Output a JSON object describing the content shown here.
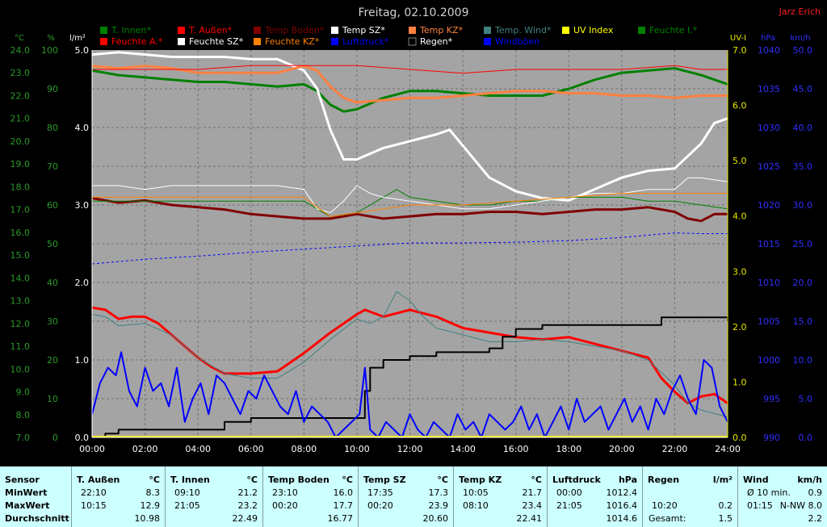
{
  "title": "Freitag, 02.10.2009",
  "author": "Jarz Erich",
  "colors": {
    "bg": "#000000",
    "plot": "#a4a4a4",
    "grid": "#707070",
    "temp_axis": "#2a9a2a",
    "hum_axis": "#2a9a2a",
    "rain_axis": "#ffffff",
    "uv_axis": "#e6e600",
    "press_axis": "#3030ff",
    "wind_axis": "#3030ff"
  },
  "legend": [
    {
      "label": "T. Innen*",
      "color": "#008000"
    },
    {
      "label": "T. Außen*",
      "color": "#ff0000"
    },
    {
      "label": "Temp Boden*",
      "color": "#800000"
    },
    {
      "label": "Temp SZ*",
      "color": "#ffffff"
    },
    {
      "label": "Temp KZ*",
      "color": "#ff8040"
    },
    {
      "label": "Temp. Wind*",
      "color": "#408080"
    },
    {
      "label": "UV Index",
      "color": "#ffff00"
    },
    {
      "label": "Feuchte I.*",
      "color": "#008000"
    },
    {
      "label": "Feuchte A.*",
      "color": "#ff0000"
    },
    {
      "label": "Feuchte SZ*",
      "color": "#ffffff"
    },
    {
      "label": "Feuchte KZ*",
      "color": "#ff8000"
    },
    {
      "label": "Luftdruck*",
      "color": "#0000ff"
    },
    {
      "label": "Regen*",
      "color": "#000000"
    },
    {
      "label": "Windböen",
      "color": "#0000ff"
    }
  ],
  "chart_data": {
    "type": "line",
    "xlabel": "",
    "x_ticks": [
      "00:00",
      "02:00",
      "04:00",
      "06:00",
      "08:00",
      "10:00",
      "12:00",
      "14:00",
      "16:00",
      "18:00",
      "20:00",
      "22:00",
      "24:00"
    ],
    "xlim": [
      0,
      24
    ],
    "grid": true,
    "legend_position": "top",
    "axes": {
      "temp": {
        "unit": "°C",
        "range": [
          7.0,
          24.0
        ],
        "ticks": [
          "7.0",
          "8.0",
          "9.0",
          "10.0",
          "11.0",
          "12.0",
          "13.0",
          "14.0",
          "15.0",
          "16.0",
          "17.0",
          "18.0",
          "19.0",
          "20.0",
          "21.0",
          "22.0",
          "23.0",
          "24.0"
        ]
      },
      "hum": {
        "unit": "%",
        "range": [
          0,
          100
        ],
        "ticks": [
          "0",
          "10",
          "20",
          "30",
          "40",
          "50",
          "60",
          "70",
          "80",
          "90",
          "100"
        ]
      },
      "rain": {
        "unit": "l/m²",
        "range": [
          0.0,
          5.0
        ],
        "ticks": [
          "0.0",
          "1.0",
          "2.0",
          "3.0",
          "4.0",
          "5.0"
        ]
      },
      "uv": {
        "unit": "UV-I",
        "range": [
          0.0,
          7.0
        ],
        "ticks": [
          "0.0",
          "1.0",
          "2.0",
          "3.0",
          "4.0",
          "5.0",
          "6.0",
          "7.0"
        ]
      },
      "press": {
        "unit": "hPa",
        "range": [
          990,
          1040
        ],
        "ticks": [
          "990",
          "995",
          "1000",
          "1005",
          "1010",
          "1015",
          "1020",
          "1025",
          "1030",
          "1035",
          "1040"
        ]
      },
      "wind": {
        "unit": "km/h",
        "range": [
          0.0,
          50.0
        ],
        "ticks": [
          "0.0",
          "5.0",
          "10.0",
          "15.0",
          "20.0",
          "25.0",
          "30.0",
          "35.0",
          "40.0",
          "45.0",
          "50.0"
        ]
      }
    },
    "series": [
      {
        "name": "T. Innen*",
        "axis": "temp",
        "color": "#008000",
        "width": 3,
        "x": [
          0,
          1,
          2,
          3,
          4,
          5,
          6,
          7,
          8,
          8.5,
          9,
          9.5,
          10,
          11,
          12,
          13,
          14,
          15,
          16,
          17,
          18,
          19,
          20,
          21,
          22,
          23,
          24
        ],
        "y": [
          23.1,
          22.9,
          22.8,
          22.7,
          22.6,
          22.6,
          22.5,
          22.4,
          22.5,
          22.2,
          21.6,
          21.3,
          21.4,
          21.9,
          22.2,
          22.2,
          22.1,
          22.0,
          22.0,
          22.0,
          22.3,
          22.7,
          23.0,
          23.1,
          23.2,
          22.9,
          22.5
        ]
      },
      {
        "name": "T. Außen*",
        "axis": "temp",
        "color": "#ff0000",
        "width": 3,
        "x": [
          0,
          0.5,
          1,
          1.5,
          2,
          2.5,
          3,
          3.5,
          4,
          4.5,
          5,
          6,
          7,
          8,
          9,
          10,
          10.3,
          11,
          12,
          13,
          14,
          15,
          16,
          17,
          18,
          19,
          20,
          21,
          21.5,
          22,
          22.5,
          23,
          23.5,
          24
        ],
        "y": [
          12.7,
          12.6,
          12.2,
          12.3,
          12.3,
          12.0,
          11.5,
          11.0,
          10.5,
          10.1,
          9.8,
          9.8,
          9.9,
          10.7,
          11.6,
          12.4,
          12.6,
          12.3,
          12.6,
          12.3,
          11.8,
          11.6,
          11.4,
          11.3,
          11.4,
          11.1,
          10.8,
          10.5,
          9.6,
          9.0,
          8.5,
          8.8,
          8.9,
          8.5
        ]
      },
      {
        "name": "Temp Boden*",
        "axis": "temp",
        "color": "#800000",
        "width": 3,
        "x": [
          0,
          1,
          2,
          3,
          4,
          5,
          6,
          7,
          8,
          9,
          10,
          11,
          12,
          13,
          14,
          15,
          16,
          17,
          18,
          19,
          20,
          21,
          22,
          22.5,
          23,
          23.5,
          24
        ],
        "y": [
          17.5,
          17.3,
          17.4,
          17.2,
          17.1,
          17.0,
          16.8,
          16.7,
          16.6,
          16.6,
          16.8,
          16.6,
          16.7,
          16.8,
          16.8,
          16.9,
          16.9,
          16.8,
          16.9,
          17.0,
          17.0,
          17.1,
          16.9,
          16.6,
          16.5,
          16.8,
          16.8
        ]
      },
      {
        "name": "Temp SZ*",
        "axis": "temp",
        "color": "#ffffff",
        "width": 3,
        "x": [
          0,
          1,
          2,
          3,
          4,
          5,
          6,
          7,
          8,
          8.5,
          9,
          9.5,
          10,
          11,
          12,
          13,
          13.5,
          14,
          15,
          16,
          17,
          18,
          19,
          20,
          21,
          22,
          23,
          23.5,
          24
        ],
        "y": [
          23.8,
          23.9,
          23.8,
          23.7,
          23.7,
          23.7,
          23.6,
          23.6,
          23.1,
          22.3,
          20.5,
          19.2,
          19.2,
          19.7,
          20.0,
          20.3,
          20.5,
          19.8,
          18.4,
          17.8,
          17.5,
          17.4,
          17.9,
          18.4,
          18.7,
          18.8,
          19.9,
          20.8,
          21.0
        ]
      },
      {
        "name": "Temp KZ*",
        "axis": "temp",
        "color": "#ff8040",
        "width": 3,
        "x": [
          0,
          1,
          2,
          3,
          4,
          5,
          6,
          7,
          8,
          8.5,
          9,
          9.5,
          10,
          11,
          12,
          13,
          14,
          15,
          16,
          17,
          18,
          19,
          20,
          21,
          22,
          23,
          24
        ],
        "y": [
          23.3,
          23.2,
          23.3,
          23.2,
          23.0,
          23.0,
          23.0,
          23.0,
          23.3,
          23.1,
          22.4,
          21.9,
          21.7,
          21.8,
          21.9,
          21.9,
          22.0,
          22.1,
          22.2,
          22.2,
          22.1,
          22.1,
          22.0,
          22.0,
          21.9,
          22.0,
          22.0
        ]
      },
      {
        "name": "Temp. Wind*",
        "axis": "temp",
        "color": "#408080",
        "width": 1,
        "x": [
          0,
          0.5,
          1,
          2,
          3,
          4,
          5,
          6,
          7,
          8,
          9,
          10,
          10.5,
          11,
          11.5,
          12,
          12.5,
          13,
          14,
          15,
          16,
          17,
          18,
          19,
          20,
          21,
          22,
          22.5,
          23,
          24
        ],
        "y": [
          12.4,
          12.3,
          11.9,
          12.0,
          11.5,
          10.5,
          9.8,
          9.6,
          9.6,
          10.3,
          11.3,
          12.2,
          12.0,
          12.3,
          13.4,
          13.0,
          12.3,
          11.8,
          11.5,
          11.2,
          11.2,
          11.3,
          11.2,
          11.0,
          10.8,
          10.4,
          9.3,
          8.5,
          8.2,
          7.9
        ]
      },
      {
        "name": "Feuchte I.*",
        "axis": "hum",
        "color": "#008000",
        "width": 1,
        "x": [
          0,
          2,
          4,
          6,
          8,
          9,
          10,
          11,
          11.5,
          12,
          13,
          14,
          15,
          16,
          17,
          18,
          19,
          20,
          21,
          22,
          23,
          24
        ],
        "y": [
          61,
          61,
          61,
          61,
          61,
          57,
          58,
          62,
          64,
          62,
          61,
          60,
          60,
          61,
          61,
          62,
          62,
          62,
          61,
          61,
          60,
          59
        ]
      },
      {
        "name": "Feuchte A.*",
        "axis": "hum",
        "color": "#ff0000",
        "width": 1,
        "x": [
          0,
          2,
          4,
          6,
          8,
          10,
          12,
          14,
          16,
          18,
          20,
          22,
          23,
          24
        ],
        "y": [
          95,
          95,
          95,
          96,
          96,
          96,
          95,
          94,
          95,
          95,
          95,
          96,
          95,
          95
        ]
      },
      {
        "name": "Feuchte SZ*",
        "axis": "hum",
        "color": "#ffffff",
        "width": 1,
        "x": [
          0,
          1,
          2,
          3,
          4,
          5,
          6,
          7,
          8,
          8.5,
          9,
          9.5,
          10,
          10.5,
          11,
          12,
          13,
          14,
          15,
          16,
          17,
          18,
          19,
          20,
          21,
          22,
          22.5,
          23,
          24
        ],
        "y": [
          65,
          65,
          64,
          65,
          65,
          65,
          65,
          65,
          64,
          59,
          58,
          61,
          65,
          63,
          62,
          61,
          60,
          59,
          59,
          60,
          61,
          62,
          63,
          63,
          64,
          64,
          67,
          67,
          66
        ]
      },
      {
        "name": "Feuchte KZ*",
        "axis": "hum",
        "color": "#ff8000",
        "width": 1,
        "x": [
          0,
          2,
          4,
          6,
          8,
          9,
          10,
          12,
          14,
          16,
          18,
          20,
          22,
          23,
          24
        ],
        "y": [
          62,
          62,
          62,
          62,
          62,
          57,
          58,
          60,
          60,
          61,
          62,
          63,
          63,
          63,
          63
        ]
      },
      {
        "name": "Luftdruck*",
        "axis": "press",
        "color": "#0000ff",
        "width": 1,
        "dashed": true,
        "x": [
          0,
          2,
          4,
          6,
          8,
          10,
          12,
          14,
          16,
          18,
          20,
          21,
          22,
          23,
          24
        ],
        "y": [
          1012.4,
          1013.0,
          1013.4,
          1013.9,
          1014.3,
          1014.7,
          1015.1,
          1015.1,
          1015.2,
          1015.4,
          1015.8,
          1016.1,
          1016.4,
          1016.3,
          1016.3
        ]
      },
      {
        "name": "Regen*",
        "axis": "rain",
        "color": "#000000",
        "width": 2,
        "step": true,
        "x": [
          0,
          0.5,
          1,
          2,
          3,
          4,
          5,
          6,
          7,
          8,
          9,
          10,
          10.3,
          10.5,
          11,
          12,
          13,
          14,
          15,
          15.5,
          16,
          17,
          18,
          19,
          20,
          21,
          21.5,
          22,
          23,
          24
        ],
        "y": [
          0.0,
          0.05,
          0.1,
          0.1,
          0.1,
          0.1,
          0.2,
          0.25,
          0.25,
          0.25,
          0.25,
          0.25,
          0.6,
          0.9,
          1.0,
          1.05,
          1.1,
          1.1,
          1.15,
          1.3,
          1.4,
          1.45,
          1.45,
          1.45,
          1.45,
          1.45,
          1.55,
          1.55,
          1.55,
          1.5
        ]
      },
      {
        "name": "Windböen",
        "axis": "wind",
        "color": "#0000ff",
        "width": 2,
        "x": [
          0,
          0.3,
          0.6,
          0.9,
          1.1,
          1.4,
          1.7,
          2.0,
          2.3,
          2.6,
          2.9,
          3.2,
          3.5,
          3.8,
          4.1,
          4.4,
          4.7,
          5.0,
          5.3,
          5.6,
          5.9,
          6.2,
          6.5,
          6.8,
          7.1,
          7.4,
          7.7,
          8.0,
          8.3,
          8.6,
          8.9,
          9.2,
          9.5,
          9.8,
          10.1,
          10.3,
          10.5,
          10.8,
          11.1,
          11.4,
          11.7,
          12.0,
          12.3,
          12.6,
          12.9,
          13.2,
          13.5,
          13.8,
          14.1,
          14.4,
          14.7,
          15.0,
          15.3,
          15.6,
          15.9,
          16.2,
          16.5,
          16.8,
          17.1,
          17.4,
          17.7,
          18.0,
          18.3,
          18.6,
          18.9,
          19.2,
          19.5,
          19.8,
          20.1,
          20.4,
          20.7,
          21.0,
          21.3,
          21.6,
          21.9,
          22.2,
          22.5,
          22.8,
          23.1,
          23.4,
          23.7,
          24.0
        ],
        "y": [
          3,
          7,
          9,
          8,
          11,
          6,
          4,
          9,
          6,
          7,
          4,
          9,
          2,
          5,
          7,
          3,
          8,
          7,
          5,
          3,
          6,
          5,
          8,
          6,
          4,
          3,
          6,
          2,
          4,
          3,
          2,
          0,
          1,
          2,
          3,
          9,
          1,
          0,
          2,
          1,
          0,
          3,
          1,
          0,
          2,
          1,
          0,
          3,
          1,
          2,
          0,
          3,
          2,
          1,
          2,
          4,
          1,
          3,
          0,
          2,
          4,
          1,
          5,
          2,
          3,
          4,
          1,
          3,
          5,
          2,
          4,
          1,
          5,
          3,
          6,
          8,
          5,
          3,
          10,
          9,
          4,
          2
        ]
      }
    ]
  },
  "stats": {
    "sensor": {
      "header": "Sensor",
      "rows": [
        "MinWert",
        "MaxWert",
        "Durchschnitt"
      ]
    },
    "columns": [
      {
        "name": "T. Außen",
        "unit": "°C",
        "min_time": "22:10",
        "min_val": "8.3",
        "max_time": "10:15",
        "max_val": "12.9",
        "avg": "10.98"
      },
      {
        "name": "T. Innen",
        "unit": "°C",
        "min_time": "09:10",
        "min_val": "21.2",
        "max_time": "21:05",
        "max_val": "23.2",
        "avg": "22.49"
      },
      {
        "name": "Temp Boden",
        "unit": "°C",
        "min_time": "23:10",
        "min_val": "16.0",
        "max_time": "00:20",
        "max_val": "17.7",
        "avg": "16.77"
      },
      {
        "name": "Temp SZ",
        "unit": "°C",
        "min_time": "17:35",
        "min_val": "17.3",
        "max_time": "00:20",
        "max_val": "23.9",
        "avg": "20.60"
      },
      {
        "name": "Temp KZ",
        "unit": "°C",
        "min_time": "10:05",
        "min_val": "21.7",
        "max_time": "08:10",
        "max_val": "23.4",
        "avg": "22.41"
      },
      {
        "name": "Luftdruck",
        "unit": "hPa",
        "min_time": "00:00",
        "min_val": "1012.4",
        "max_time": "21:05",
        "max_val": "1016.4",
        "avg": "1014.6"
      }
    ],
    "rain": {
      "name": "Regen",
      "unit": "l/m²",
      "r1_time": "",
      "r1_val": "",
      "r2_time": "10:20",
      "r2_val": "0.2",
      "r3_time": "Gesamt:",
      "r3_val": "1.5"
    },
    "wind": {
      "name": "Wind",
      "unit": "km/h",
      "r1_time": "Ø 10 min.",
      "r1_val": "0.9",
      "r2_time": "01:15",
      "r2_val": "N-NW 8.0",
      "r3_time": "",
      "r3_val": "2.2"
    }
  }
}
